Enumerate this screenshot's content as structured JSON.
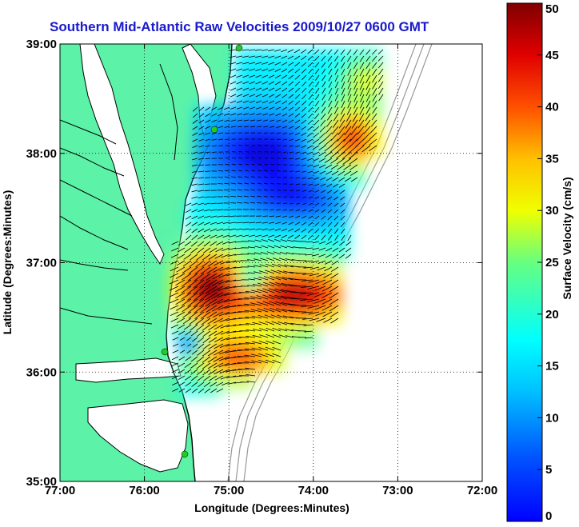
{
  "title": "Southern Mid-Atlantic Raw Velocities 2009/10/27 0600 GMT",
  "axes": {
    "x_label": "Longitude (Degrees:Minutes)",
    "y_label": "Latitude (Degrees:Minutes)",
    "x_ticks": [
      "77:00",
      "76:00",
      "75:00",
      "74:00",
      "73:00",
      "72:00"
    ],
    "y_ticks": [
      "39:00",
      "38:00",
      "37:00",
      "36:00",
      "35:00"
    ],
    "x_range": [
      -77,
      -72
    ],
    "y_range": [
      35,
      39
    ],
    "grid": "dotted"
  },
  "colorbar": {
    "label": "Surface Velocity (cm/s)",
    "ticks": [
      "0",
      "5",
      "10",
      "15",
      "20",
      "25",
      "30",
      "35",
      "40",
      "45",
      "50"
    ],
    "range": [
      0,
      50
    ],
    "colormap": "jet"
  },
  "colors": {
    "land": "#5cf2a8",
    "water": "#ffffff",
    "title": "#1a1acc",
    "coast": "#000000",
    "bathymetry": "#999999",
    "site_marker": "#22cc22"
  }
}
